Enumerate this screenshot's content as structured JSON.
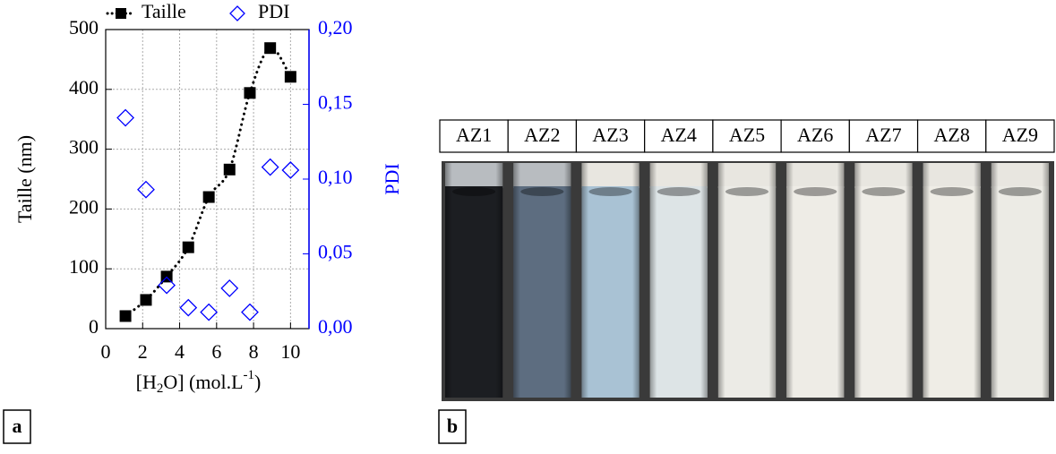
{
  "chart_data": {
    "type": "scatter",
    "xlabel_parts": [
      "[H",
      "2",
      "O] (mol.L",
      "-1",
      ")"
    ],
    "ylabel": "Taille (nm)",
    "y2label": "PDI",
    "xlim": [
      0,
      11
    ],
    "xticks": [
      0,
      2,
      4,
      6,
      8,
      10
    ],
    "ylim": [
      0,
      500
    ],
    "yticks": [
      0,
      100,
      200,
      300,
      400,
      500
    ],
    "y2lim": [
      0,
      0.2
    ],
    "y2ticks": [
      {
        "value": 0,
        "label": "0,00"
      },
      {
        "value": 0.05,
        "label": "0,05"
      },
      {
        "value": 0.1,
        "label": "0,10"
      },
      {
        "value": 0.15,
        "label": "0,15"
      },
      {
        "value": 0.2,
        "label": "0,20"
      }
    ],
    "grid": true,
    "legend": "top",
    "series": [
      {
        "name": "Taille",
        "color": "#000000",
        "marker": "square",
        "line": "dotted",
        "x": [
          1.07,
          2.18,
          3.3,
          4.47,
          5.58,
          6.7,
          7.8,
          8.9,
          10.0
        ],
        "values": [
          21,
          48,
          87,
          136,
          220,
          266,
          394,
          469,
          421
        ]
      },
      {
        "name": "PDI",
        "color": "#0000ff",
        "marker": "diamond",
        "axis": "y2",
        "x": [
          1.07,
          2.18,
          3.3,
          4.47,
          5.58,
          6.7,
          7.8,
          8.9,
          10.0
        ],
        "values": [
          0.141,
          0.093,
          0.029,
          0.014,
          0.011,
          0.027,
          0.011,
          0.108,
          0.106
        ]
      }
    ]
  },
  "panel_labels": [
    "a",
    "b"
  ],
  "samples": [
    "AZ1",
    "AZ2",
    "AZ3",
    "AZ4",
    "AZ5",
    "AZ6",
    "AZ7",
    "AZ8",
    "AZ9"
  ]
}
